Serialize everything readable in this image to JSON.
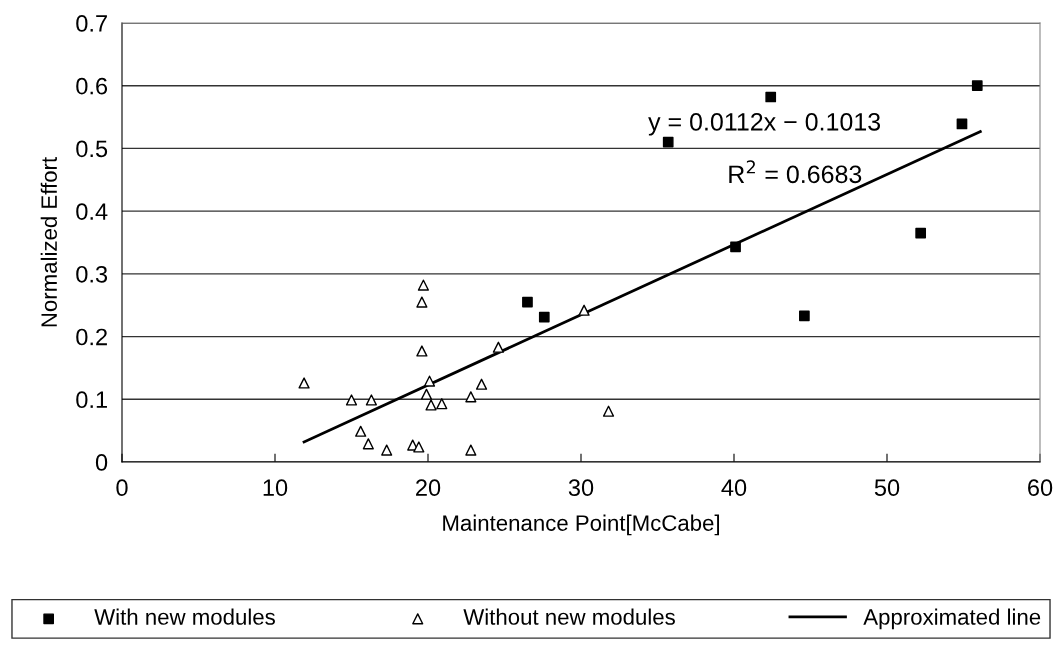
{
  "chart_data": {
    "type": "scatter",
    "xlabel": "Maintenance Point[McCabe]",
    "ylabel": "Normalized Effort",
    "xlim": [
      0,
      60
    ],
    "xticks": [
      0,
      10,
      20,
      30,
      40,
      50,
      60
    ],
    "ylim": [
      0,
      0.7
    ],
    "yticks": [
      0,
      0.1,
      0.2,
      0.3,
      0.4,
      0.5,
      0.6,
      0.7
    ],
    "grid": "y",
    "legend": "bottom",
    "annotations": [
      "y = 0.0112x − 0.1013",
      "R$^{2}$ = 0.6683"
    ],
    "series": [
      {
        "name": "With new modules",
        "color": "#000000",
        "marker": "square",
        "x": [
          26.5,
          27.6,
          35.7,
          40.1,
          42.4,
          44.6,
          52.2,
          54.9,
          55.9
        ],
        "values": [
          0.255,
          0.231,
          0.51,
          0.343,
          0.582,
          0.233,
          0.365,
          0.539,
          0.6
        ]
      },
      {
        "name": "Without new modules",
        "color": "#000000",
        "marker": "triangle",
        "x": [
          11.9,
          15.0,
          16.3,
          15.6,
          16.1,
          17.3,
          19.0,
          19.4,
          19.7,
          19.6,
          19.6,
          20.1,
          19.9,
          20.2,
          20.9,
          22.8,
          22.8,
          23.5,
          24.6,
          30.2,
          31.8
        ],
        "values": [
          0.126,
          0.099,
          0.099,
          0.049,
          0.029,
          0.019,
          0.027,
          0.024,
          0.282,
          0.255,
          0.177,
          0.129,
          0.108,
          0.091,
          0.093,
          0.104,
          0.019,
          0.124,
          0.183,
          0.242,
          0.081
        ]
      },
      {
        "name": "Approximated line",
        "type": "line",
        "color": "#000000",
        "marker": "none",
        "line_style": "solid",
        "x": [
          11.9,
          56.1
        ],
        "values": [
          0.032,
          0.527
        ]
      }
    ]
  }
}
